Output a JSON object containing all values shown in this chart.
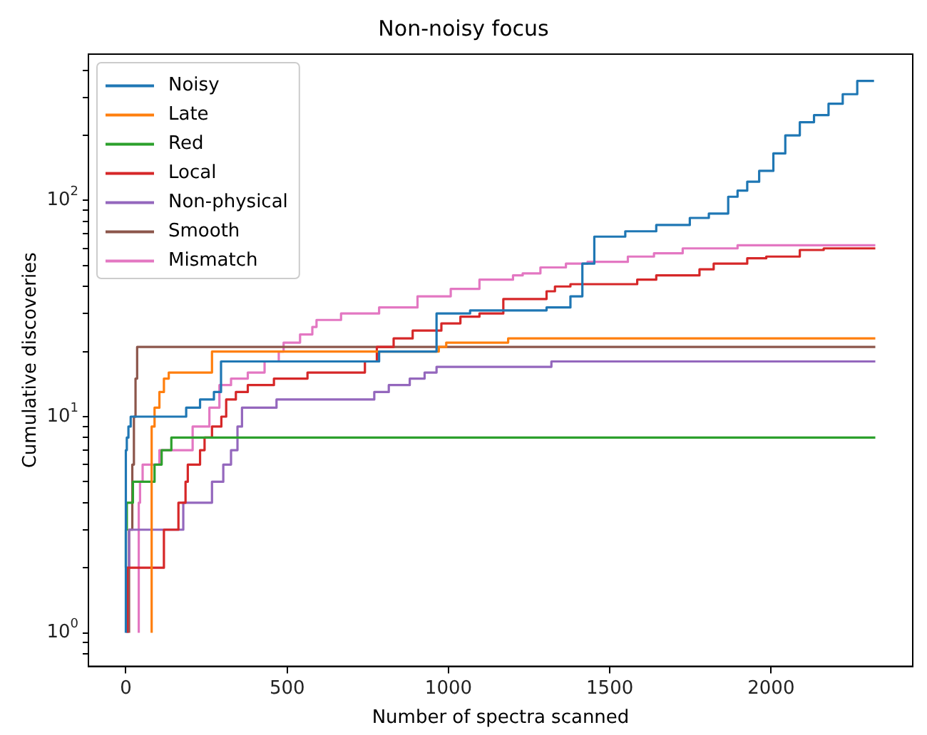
{
  "chart_data": {
    "type": "step",
    "title": "Non-noisy focus",
    "xlabel": "Number of spectra scanned",
    "ylabel": "Cumulative discoveries",
    "log": "y",
    "grid": false,
    "legend": "top left",
    "xlim": [
      -116,
      2439
    ],
    "xticks": [
      0,
      500,
      1000,
      1500,
      2000
    ],
    "ylim": [
      0.73,
      475
    ],
    "yticks": [
      {
        "value": 0.8,
        "label": null
      },
      {
        "value": 0.9,
        "label": null
      },
      {
        "value": 1,
        "label": "10$^{0}$"
      },
      {
        "value": 2,
        "label": null
      },
      {
        "value": 3,
        "label": null
      },
      {
        "value": 4,
        "label": null
      },
      {
        "value": 5,
        "label": null
      },
      {
        "value": 6,
        "label": null
      },
      {
        "value": 7,
        "label": null
      },
      {
        "value": 8,
        "label": null
      },
      {
        "value": 9,
        "label": null
      },
      {
        "value": 10,
        "label": "10$^{1}$"
      },
      {
        "value": 20,
        "label": null
      },
      {
        "value": 30,
        "label": null
      },
      {
        "value": 40,
        "label": null
      },
      {
        "value": 50,
        "label": null
      },
      {
        "value": 60,
        "label": null
      },
      {
        "value": 70,
        "label": null
      },
      {
        "value": 80,
        "label": null
      },
      {
        "value": 90,
        "label": null
      },
      {
        "value": 100,
        "label": "10$^{2}$"
      },
      {
        "value": 200,
        "label": null
      },
      {
        "value": 300,
        "label": null
      },
      {
        "value": 400,
        "label": null
      }
    ],
    "series": [
      {
        "name": "Noisy",
        "color": "#1f77b4",
        "x": [
          0,
          3,
          8,
          15,
          187,
          230,
          273,
          295,
          785,
          963,
          1067,
          1304,
          1378,
          1415,
          1452,
          1548,
          1644,
          1748,
          1807,
          1867,
          1896,
          1926,
          1963,
          2007,
          2044,
          2089,
          2133,
          2178,
          2222,
          2267,
          2319
        ],
        "values": [
          1,
          7,
          8,
          9,
          10,
          11,
          12,
          13,
          18,
          20,
          30,
          31,
          32,
          36,
          51,
          68,
          72,
          77,
          83,
          87,
          104,
          111,
          122,
          137,
          165,
          200,
          230,
          248,
          280,
          310,
          357
        ]
      },
      {
        "name": "Late",
        "color": "#ff7f0e",
        "x": [
          80,
          89,
          104,
          118,
          133,
          267,
          970,
          993,
          1185,
          1378,
          2323
        ],
        "values": [
          1,
          9,
          11,
          13,
          15,
          16,
          20,
          21,
          22,
          23,
          23
        ]
      },
      {
        "name": "Red",
        "color": "#2ca02c",
        "x": [
          0,
          3,
          22,
          89,
          111,
          141,
          1436,
          2323
        ],
        "values": [
          2,
          3,
          4,
          5,
          6,
          7,
          8,
          8
        ]
      },
      {
        "name": "Local",
        "color": "#d62728",
        "x": [
          5,
          118,
          163,
          185,
          192,
          230,
          244,
          267,
          296,
          311,
          341,
          378,
          459,
          563,
          741,
          778,
          830,
          889,
          978,
          1037,
          1096,
          1170,
          1304,
          1330,
          1378,
          1585,
          1644,
          1778,
          1822,
          1926,
          1985,
          2089,
          2163,
          2222,
          2323
        ],
        "values": [
          1,
          2,
          3,
          4,
          5,
          6,
          7,
          8,
          9,
          10,
          12,
          13,
          14,
          15,
          16,
          18,
          21,
          23,
          25,
          27,
          29,
          30,
          35,
          38,
          40,
          41,
          43,
          45,
          48,
          51,
          54,
          55,
          59,
          60,
          60
        ]
      },
      {
        "name": "Non-physical",
        "color": "#9467bd",
        "x": [
          5,
          10,
          178,
          267,
          302,
          326,
          346,
          360,
          467,
          770,
          815,
          880,
          926,
          963,
          1319,
          1644,
          2323
        ],
        "values": [
          1,
          2,
          3,
          4,
          5,
          6,
          7,
          9,
          11,
          12,
          13,
          14,
          15,
          16,
          17,
          18,
          18
        ]
      },
      {
        "name": "Smooth",
        "color": "#8c564b",
        "x": [
          10,
          20,
          25,
          30,
          35,
          44,
          2323
        ],
        "values": [
          1,
          3,
          6,
          10,
          15,
          21,
          21
        ]
      },
      {
        "name": "Mismatch",
        "color": "#e377c2",
        "x": [
          40,
          44,
          52,
          104,
          207,
          259,
          290,
          326,
          378,
          430,
          474,
          489,
          540,
          578,
          591,
          667,
          785,
          904,
          1007,
          1096,
          1170,
          1200,
          1230,
          1285,
          1364,
          1431,
          1556,
          1637,
          1726,
          1896,
          2207,
          2323
        ],
        "values": [
          1,
          4,
          5,
          6,
          7,
          9,
          11,
          14,
          15,
          16,
          18,
          20,
          22,
          24,
          26,
          28,
          30,
          32,
          36,
          39,
          43,
          43,
          45,
          46,
          49,
          51,
          52,
          55,
          57,
          60,
          62,
          62
        ]
      }
    ]
  }
}
